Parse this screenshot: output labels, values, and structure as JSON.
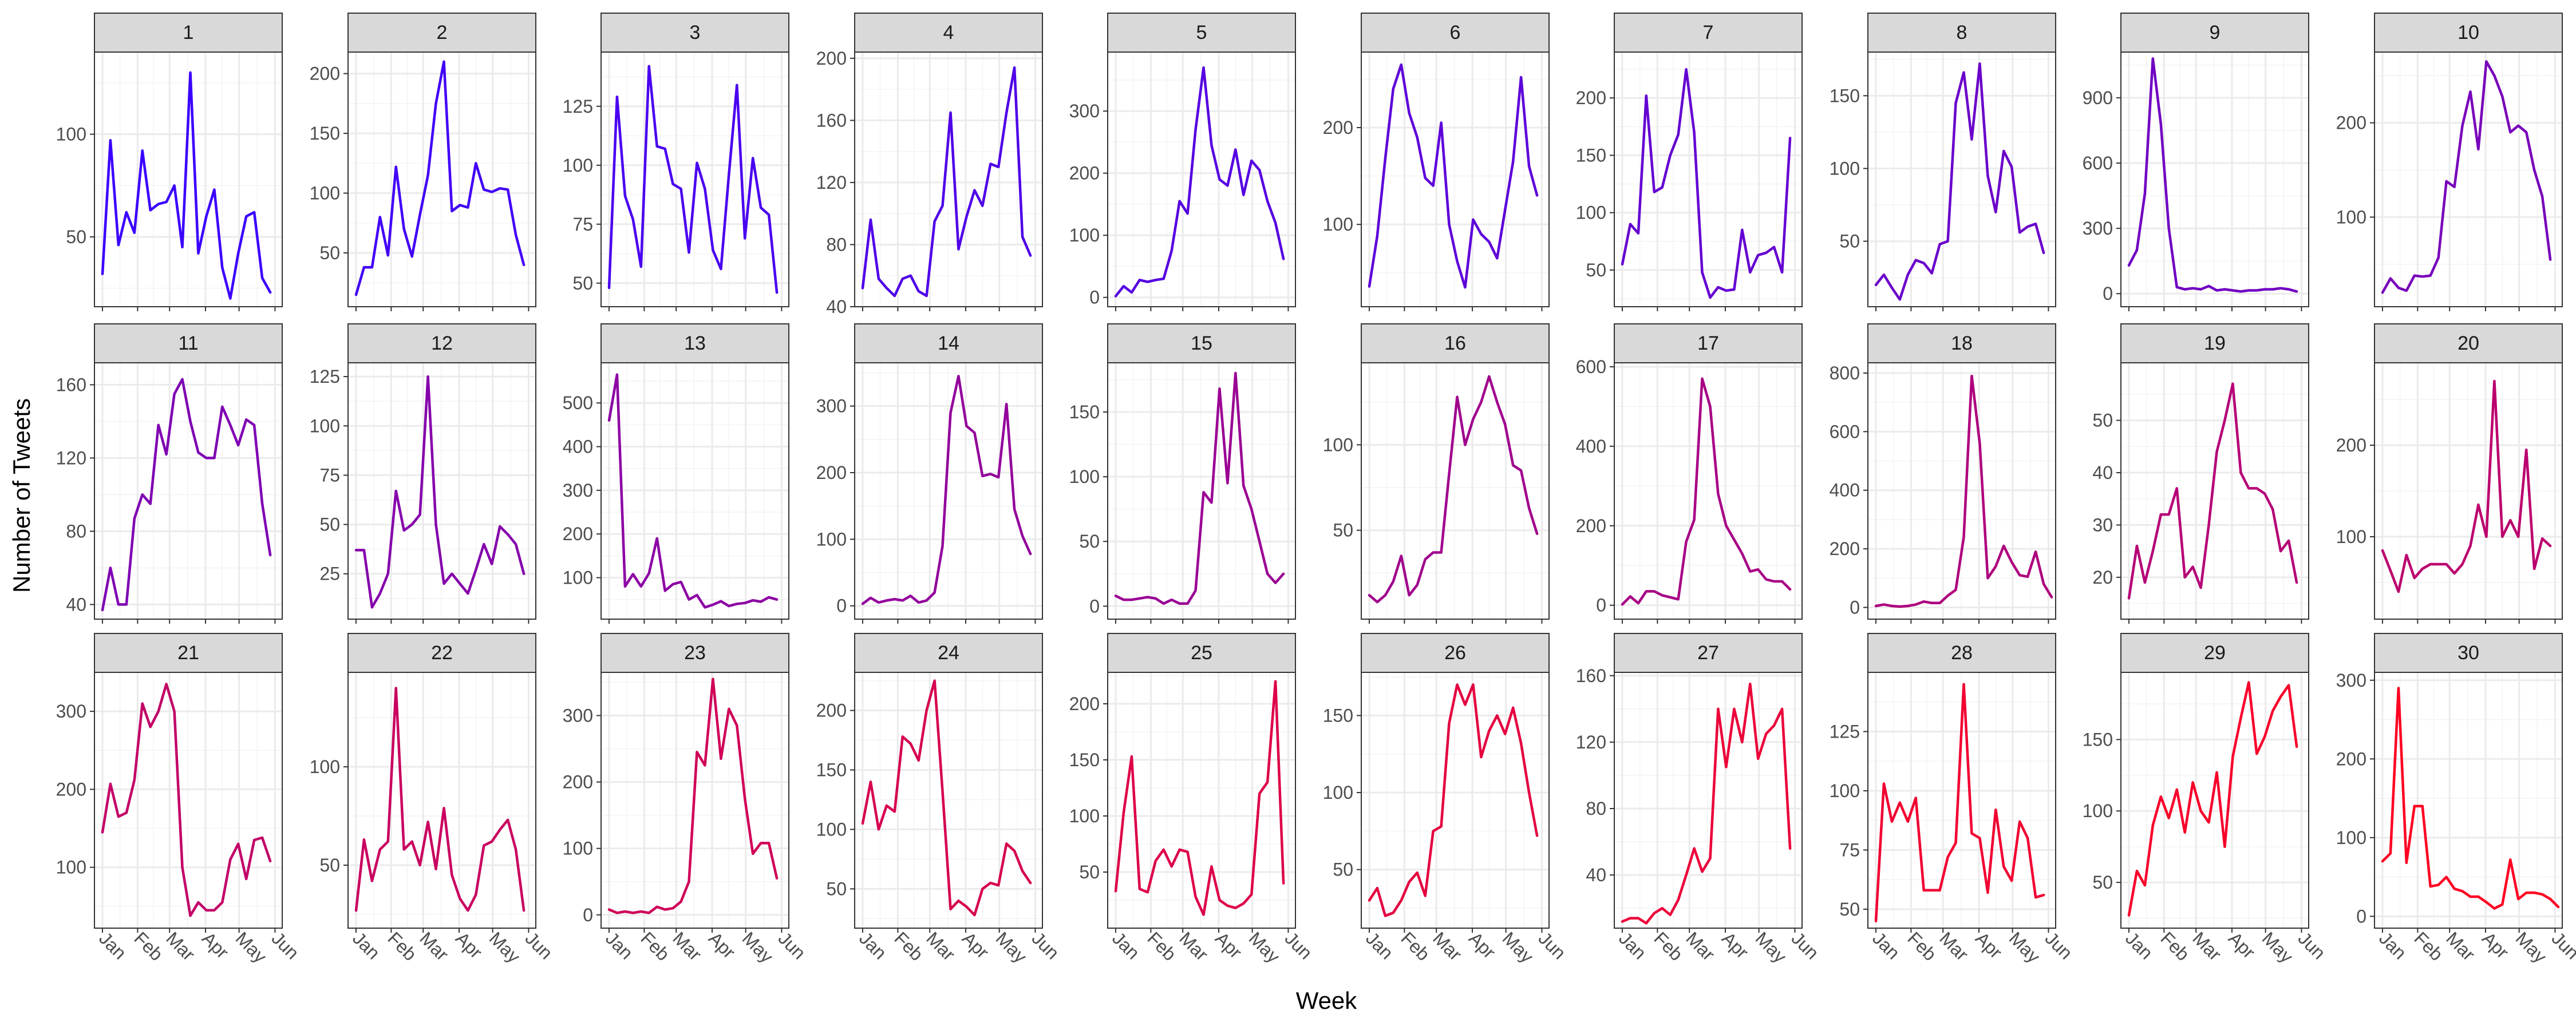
{
  "chart_data": {
    "type": "line",
    "layout": "small-multiples",
    "xlabel": "Week",
    "ylabel": "Number of Tweets",
    "x_tick_labels": [
      "Jan",
      "Feb",
      "Mar",
      "Apr",
      "May",
      "Jun"
    ],
    "x_tick_weeks": [
      1,
      5.4,
      9.4,
      13.9,
      18.1,
      22.6
    ],
    "x_range": [
      0,
      23.5
    ],
    "series_color_start": "#3b00ff",
    "series_color_end": "#ff0022",
    "panels": [
      {
        "label": "1",
        "yticks": [
          50,
          100
        ],
        "ylim": [
          16,
          140
        ],
        "values": [
          32,
          97,
          46,
          62,
          52,
          92,
          63,
          66,
          67,
          75,
          45,
          130,
          42,
          60,
          73,
          35,
          20,
          42,
          60,
          62,
          30,
          23
        ]
      },
      {
        "label": "2",
        "yticks": [
          50,
          100,
          150,
          200
        ],
        "ylim": [
          5,
          218
        ],
        "values": [
          15,
          38,
          38,
          80,
          48,
          122,
          70,
          47,
          82,
          115,
          175,
          210,
          85,
          90,
          88,
          125,
          103,
          101,
          104,
          103,
          65,
          40
        ]
      },
      {
        "label": "3",
        "yticks": [
          50,
          75,
          100,
          125
        ],
        "ylim": [
          40,
          148
        ],
        "values": [
          48,
          129,
          87,
          77,
          57,
          142,
          108,
          107,
          92,
          90,
          63,
          101,
          90,
          64,
          56,
          96,
          134,
          69,
          103,
          82,
          79,
          46
        ]
      },
      {
        "label": "4",
        "yticks": [
          40,
          80,
          120,
          160,
          200
        ],
        "ylim": [
          40,
          204
        ],
        "values": [
          52,
          96,
          58,
          52,
          47,
          58,
          60,
          50,
          47,
          95,
          105,
          165,
          77,
          98,
          115,
          105,
          132,
          130,
          165,
          194,
          85,
          73
        ]
      },
      {
        "label": "5",
        "yticks": [
          0,
          100,
          200,
          300
        ],
        "ylim": [
          -15,
          395
        ],
        "values": [
          2,
          18,
          8,
          28,
          25,
          28,
          30,
          75,
          155,
          135,
          270,
          370,
          245,
          190,
          180,
          238,
          165,
          220,
          205,
          155,
          120,
          62
        ]
      },
      {
        "label": "6",
        "yticks": [
          100,
          200
        ],
        "ylim": [
          15,
          278
        ],
        "values": [
          36,
          88,
          168,
          240,
          265,
          215,
          190,
          148,
          140,
          205,
          100,
          62,
          35,
          105,
          90,
          82,
          65,
          115,
          165,
          252,
          160,
          130
        ]
      },
      {
        "label": "7",
        "yticks": [
          50,
          100,
          150,
          200
        ],
        "ylim": [
          18,
          240
        ],
        "values": [
          55,
          90,
          82,
          202,
          118,
          122,
          150,
          168,
          225,
          170,
          48,
          26,
          35,
          32,
          33,
          85,
          48,
          63,
          65,
          70,
          48,
          165
        ]
      },
      {
        "label": "8",
        "yticks": [
          50,
          100,
          150
        ],
        "ylim": [
          5,
          180
        ],
        "values": [
          20,
          27,
          18,
          10,
          27,
          37,
          35,
          28,
          48,
          50,
          145,
          166,
          120,
          172,
          95,
          70,
          112,
          101,
          56,
          60,
          62,
          42
        ]
      },
      {
        "label": "9",
        "yticks": [
          0,
          300,
          600,
          900
        ],
        "ylim": [
          -60,
          1110
        ],
        "values": [
          130,
          200,
          460,
          1080,
          780,
          300,
          30,
          20,
          25,
          20,
          35,
          15,
          20,
          15,
          10,
          15,
          15,
          20,
          20,
          25,
          20,
          10
        ]
      },
      {
        "label": "10",
        "yticks": [
          100,
          200
        ],
        "ylim": [
          5,
          275
        ],
        "values": [
          20,
          35,
          25,
          22,
          38,
          37,
          38,
          57,
          138,
          132,
          197,
          233,
          172,
          265,
          250,
          228,
          190,
          197,
          190,
          150,
          122,
          55
        ]
      },
      {
        "label": "11",
        "yticks": [
          40,
          80,
          120,
          160
        ],
        "ylim": [
          32,
          172
        ],
        "values": [
          37,
          60,
          40,
          40,
          87,
          100,
          95,
          138,
          122,
          155,
          163,
          140,
          123,
          120,
          120,
          148,
          138,
          127,
          141,
          138,
          95,
          67
        ]
      },
      {
        "label": "12",
        "yticks": [
          25,
          50,
          75,
          100,
          125
        ],
        "ylim": [
          2,
          132
        ],
        "values": [
          37,
          37,
          8,
          15,
          25,
          67,
          47,
          50,
          55,
          125,
          50,
          20,
          25,
          20,
          15,
          27,
          40,
          30,
          49,
          45,
          40,
          25
        ]
      },
      {
        "label": "13",
        "yticks": [
          100,
          200,
          300,
          400,
          500
        ],
        "ylim": [
          5,
          592
        ],
        "values": [
          460,
          565,
          80,
          108,
          80,
          110,
          190,
          70,
          85,
          90,
          50,
          60,
          32,
          38,
          46,
          35,
          40,
          42,
          48,
          45,
          55,
          50
        ]
      },
      {
        "label": "14",
        "yticks": [
          0,
          100,
          200,
          300
        ],
        "ylim": [
          -20,
          365
        ],
        "values": [
          3,
          12,
          5,
          8,
          10,
          8,
          15,
          5,
          8,
          20,
          90,
          290,
          345,
          270,
          260,
          195,
          198,
          193,
          303,
          145,
          105,
          78
        ]
      },
      {
        "label": "15",
        "yticks": [
          0,
          50,
          100,
          150
        ],
        "ylim": [
          -10,
          188
        ],
        "values": [
          8,
          5,
          5,
          6,
          7,
          6,
          2,
          5,
          2,
          2,
          12,
          88,
          80,
          168,
          95,
          180,
          93,
          75,
          50,
          25,
          18,
          25
        ]
      },
      {
        "label": "16",
        "yticks": [
          50,
          100
        ],
        "ylim": [
          -2,
          148
        ],
        "values": [
          12,
          8,
          12,
          20,
          35,
          12,
          18,
          33,
          37,
          37,
          83,
          128,
          100,
          115,
          125,
          140,
          125,
          112,
          88,
          85,
          63,
          48
        ]
      },
      {
        "label": "17",
        "yticks": [
          0,
          200,
          400,
          600
        ],
        "ylim": [
          -35,
          610
        ],
        "values": [
          2,
          22,
          5,
          35,
          35,
          25,
          20,
          15,
          160,
          215,
          570,
          500,
          280,
          200,
          165,
          130,
          85,
          90,
          65,
          60,
          60,
          40
        ]
      },
      {
        "label": "18",
        "yticks": [
          0,
          200,
          400,
          600,
          800
        ],
        "ylim": [
          -40,
          835
        ],
        "values": [
          5,
          10,
          5,
          3,
          5,
          10,
          20,
          15,
          15,
          40,
          60,
          240,
          790,
          560,
          100,
          140,
          210,
          155,
          110,
          105,
          190,
          80,
          35
        ]
      },
      {
        "label": "19",
        "yticks": [
          20,
          30,
          40,
          50
        ],
        "ylim": [
          12,
          61
        ],
        "values": [
          16,
          26,
          19,
          25,
          32,
          32,
          37,
          20,
          22,
          18,
          30,
          44,
          50,
          57,
          40,
          37,
          37,
          36,
          33,
          25,
          27,
          19
        ]
      },
      {
        "label": "20",
        "yticks": [
          100,
          200
        ],
        "ylim": [
          10,
          290
        ],
        "values": [
          85,
          63,
          40,
          80,
          55,
          65,
          70,
          70,
          70,
          60,
          70,
          90,
          135,
          100,
          270,
          100,
          118,
          100,
          195,
          65,
          98,
          90
        ]
      },
      {
        "label": "21",
        "yticks": [
          100,
          200,
          300
        ],
        "ylim": [
          22,
          350
        ],
        "values": [
          145,
          207,
          165,
          170,
          212,
          310,
          280,
          300,
          335,
          300,
          100,
          38,
          55,
          45,
          45,
          55,
          110,
          130,
          85,
          135,
          138,
          108
        ]
      },
      {
        "label": "22",
        "yticks": [
          50,
          100
        ],
        "ylim": [
          18,
          148
        ],
        "values": [
          27,
          63,
          42,
          58,
          62,
          140,
          58,
          62,
          50,
          72,
          48,
          79,
          45,
          33,
          27,
          35,
          60,
          62,
          68,
          73,
          58,
          27
        ]
      },
      {
        "label": "23",
        "yticks": [
          0,
          100,
          200,
          300
        ],
        "ylim": [
          -20,
          365
        ],
        "values": [
          8,
          3,
          5,
          3,
          5,
          3,
          12,
          8,
          10,
          20,
          50,
          245,
          225,
          355,
          235,
          310,
          285,
          175,
          92,
          108,
          108,
          55
        ]
      },
      {
        "label": "24",
        "yticks": [
          50,
          100,
          150,
          200
        ],
        "ylim": [
          17,
          232
        ],
        "values": [
          105,
          140,
          100,
          120,
          115,
          178,
          172,
          158,
          200,
          225,
          132,
          33,
          40,
          35,
          28,
          50,
          55,
          53,
          88,
          82,
          65,
          55
        ]
      },
      {
        "label": "25",
        "yticks": [
          50,
          100,
          150,
          200
        ],
        "ylim": [
          0,
          228
        ],
        "values": [
          33,
          103,
          153,
          35,
          32,
          60,
          70,
          55,
          70,
          68,
          28,
          12,
          55,
          25,
          20,
          18,
          22,
          30,
          120,
          130,
          220,
          40
        ]
      },
      {
        "label": "26",
        "yticks": [
          50,
          100,
          150
        ],
        "ylim": [
          12,
          178
        ],
        "values": [
          30,
          38,
          20,
          22,
          30,
          42,
          48,
          33,
          75,
          78,
          145,
          170,
          157,
          170,
          123,
          140,
          150,
          138,
          155,
          132,
          100,
          72
        ]
      },
      {
        "label": "27",
        "yticks": [
          40,
          80,
          120,
          160
        ],
        "ylim": [
          8,
          162
        ],
        "values": [
          12,
          14,
          14,
          11,
          17,
          20,
          16,
          25,
          40,
          56,
          42,
          50,
          140,
          105,
          140,
          120,
          155,
          110,
          125,
          130,
          140,
          56
        ]
      },
      {
        "label": "28",
        "yticks": [
          50,
          75,
          100,
          125
        ],
        "ylim": [
          42,
          150
        ],
        "values": [
          45,
          103,
          87,
          95,
          87,
          97,
          58,
          58,
          58,
          72,
          78,
          145,
          82,
          80,
          57,
          92,
          68,
          62,
          87,
          80,
          55,
          56
        ]
      },
      {
        "label": "29",
        "yticks": [
          50,
          100,
          150
        ],
        "ylim": [
          18,
          197
        ],
        "values": [
          27,
          58,
          48,
          90,
          110,
          95,
          115,
          85,
          120,
          100,
          92,
          127,
          75,
          138,
          165,
          190,
          140,
          152,
          170,
          180,
          188,
          145
        ]
      },
      {
        "label": "30",
        "yticks": [
          0,
          100,
          200,
          300
        ],
        "ylim": [
          -15,
          310
        ],
        "values": [
          70,
          80,
          290,
          68,
          140,
          140,
          38,
          40,
          50,
          35,
          32,
          25,
          25,
          18,
          10,
          15,
          72,
          22,
          30,
          30,
          28,
          22,
          12
        ]
      }
    ]
  }
}
